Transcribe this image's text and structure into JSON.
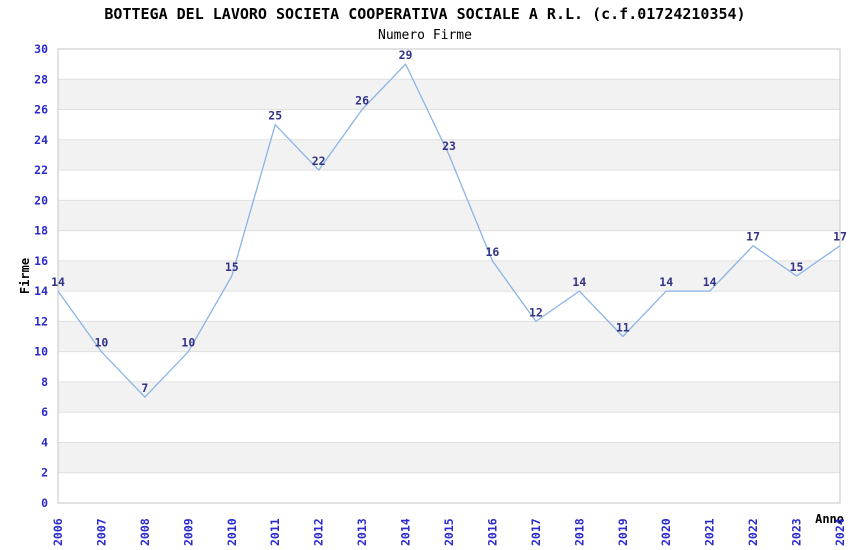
{
  "chart_data": {
    "type": "line",
    "title": "BOTTEGA DEL LAVORO SOCIETA COOPERATIVA SOCIALE A R.L. (c.f.01724210354)",
    "subtitle": "Numero Firme",
    "xlabel": "Anno",
    "ylabel": "Firme",
    "x": [
      2006,
      2007,
      2008,
      2009,
      2010,
      2011,
      2012,
      2013,
      2014,
      2015,
      2016,
      2017,
      2018,
      2019,
      2020,
      2021,
      2022,
      2023,
      2024
    ],
    "values": [
      14,
      10,
      7,
      10,
      15,
      25,
      22,
      26,
      29,
      23,
      16,
      12,
      14,
      11,
      14,
      14,
      17,
      15,
      17
    ],
    "ylim": [
      0,
      30
    ],
    "ytick_step": 2,
    "xtick_rotation": -90,
    "grid": true,
    "background_bands": true,
    "point_labels": true,
    "legend": "none"
  },
  "colors": {
    "line": "#8ab4e8",
    "axis_tick_label": "#2a2ace",
    "point_label": "#333388",
    "band": "#f2f2f2",
    "gridline": "#e0e0e0",
    "plot_border": "#c6c6c6",
    "text": "#000000",
    "background": "#ffffff"
  }
}
